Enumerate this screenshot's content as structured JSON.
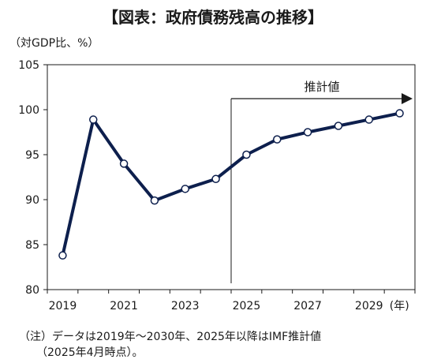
{
  "title": "【図表：政府債務残高の推移】",
  "unit_label": "（対GDP比、%）",
  "note_line1": "（注）データは2019年～2030年、2025年以降はIMF推計値",
  "note_line2": "（2025年4月時点）。",
  "chart_data": {
    "type": "line",
    "x": [
      2019,
      2020,
      2021,
      2022,
      2023,
      2024,
      2025,
      2026,
      2027,
      2028,
      2029,
      2030
    ],
    "series": [
      {
        "values": [
          83.8,
          98.9,
          94.0,
          89.9,
          91.2,
          92.3,
          95.0,
          96.7,
          97.5,
          98.2,
          98.9,
          99.6
        ]
      }
    ],
    "xlim": [
      2018.5,
      2030.5
    ],
    "ylim": [
      80,
      105
    ],
    "y_ticks": [
      80,
      85,
      90,
      95,
      100,
      105
    ],
    "x_tick_labels": [
      "2019",
      "2021",
      "2023",
      "2025",
      "2027",
      "2029"
    ],
    "x_tick_values": [
      2019,
      2021,
      2023,
      2025,
      2027,
      2029
    ],
    "x_unit_label": "(年)",
    "annotation": {
      "text": "推計値",
      "from_x": 2024.5,
      "to_x": 2030.5
    },
    "line_color": "#0d1f4d",
    "grid": false
  }
}
